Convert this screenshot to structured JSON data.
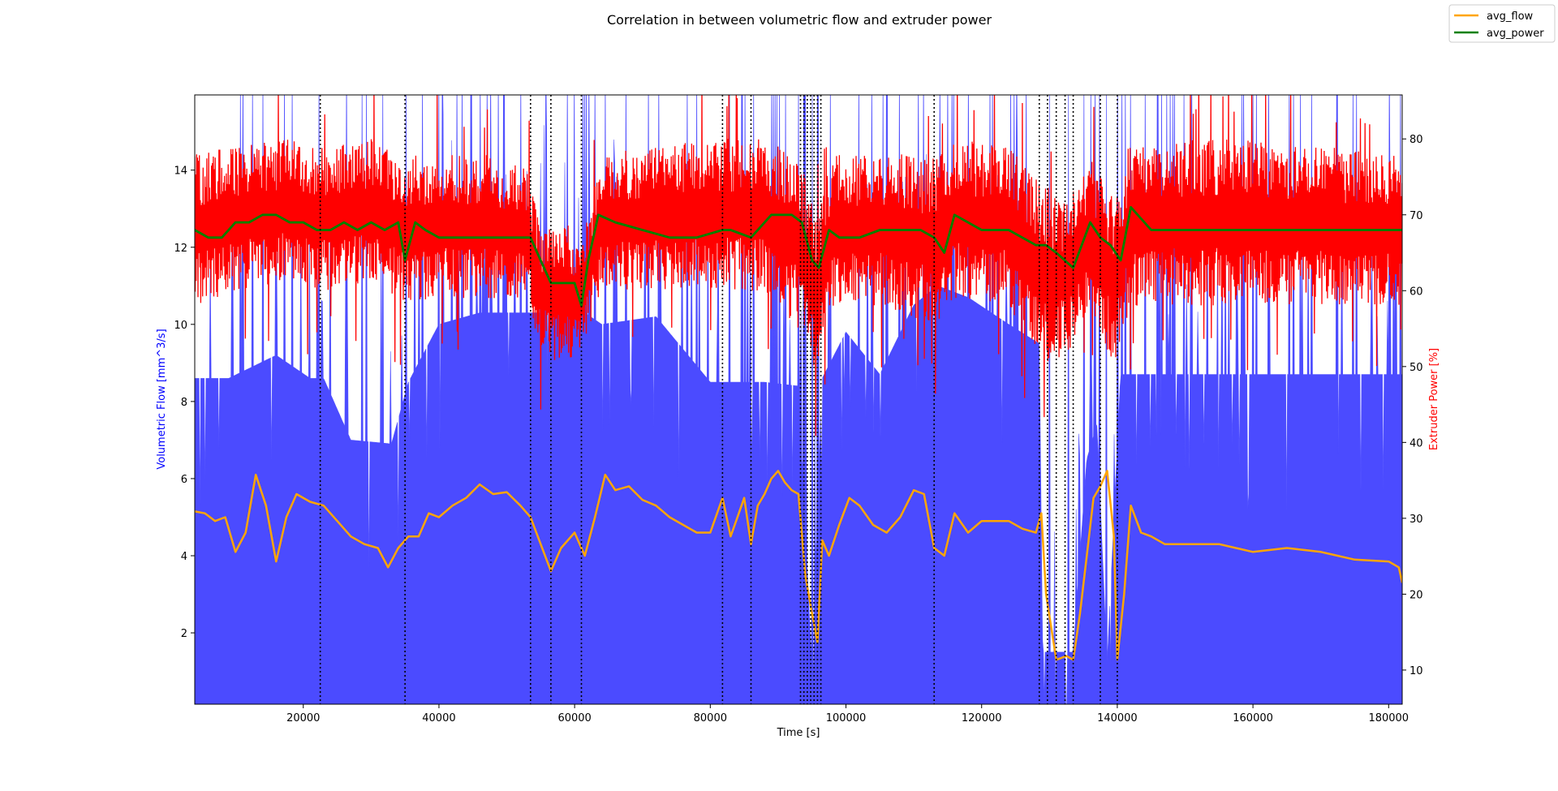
{
  "chart_data": {
    "type": "line",
    "title": "Correlation in between volumetric flow and extruder power",
    "xlabel": "Time [s]",
    "ylabel_left": "Volumetric Flow [mm^3/s]",
    "ylabel_right": "Extruder Power [%]",
    "ylabel_left_color": "#0000ff",
    "ylabel_right_color": "#ff0000",
    "xlim": [
      4000,
      182000
    ],
    "ylim_left": [
      0.15,
      15.95
    ],
    "ylim_right": [
      5.5,
      85.8
    ],
    "x_ticks": [
      20000,
      40000,
      60000,
      80000,
      100000,
      120000,
      140000,
      160000,
      180000
    ],
    "x_tick_labels": [
      "20000",
      "40000",
      "60000",
      "80000",
      "100000",
      "120000",
      "140000",
      "160000",
      "180000"
    ],
    "y_left_ticks": [
      2,
      4,
      6,
      8,
      10,
      12,
      14
    ],
    "y_left_tick_labels": [
      "2",
      "4",
      "6",
      "8",
      "10",
      "12",
      "14"
    ],
    "y_right_ticks": [
      10,
      20,
      30,
      40,
      50,
      60,
      70,
      80
    ],
    "y_right_tick_labels": [
      "10",
      "20",
      "30",
      "40",
      "50",
      "60",
      "70",
      "80"
    ],
    "grid": false,
    "legend_placement": "top-right (figure)",
    "vertical_markers_x": [
      22500,
      35000,
      53500,
      56500,
      61000,
      81800,
      86000,
      93300,
      93800,
      94300,
      94800,
      95300,
      95800,
      96300,
      113000,
      128500,
      129700,
      131000,
      132300,
      133500,
      137500,
      140000
    ],
    "series": [
      {
        "name": "",
        "axis": "left",
        "style": "raw-fill",
        "color": "#4b4bff",
        "x": [
          4000,
          9000,
          16000,
          21000,
          23000,
          27000,
          33000,
          35500,
          40000,
          46000,
          52000,
          54000,
          57000,
          61500,
          64000,
          72000,
          80000,
          84000,
          88000,
          93000,
          95000,
          96500,
          100000,
          105000,
          110000,
          113500,
          118000,
          124000,
          128500,
          129000,
          133500,
          135500,
          137000,
          138500,
          140500,
          145000,
          155000,
          165000,
          175000,
          182000
        ],
        "y_base": [
          8.6,
          8.6,
          9.2,
          8.6,
          8.6,
          7.0,
          6.9,
          8.5,
          10.0,
          10.3,
          10.3,
          10.3,
          10.3,
          10.3,
          10.0,
          10.2,
          8.5,
          8.5,
          8.5,
          8.4,
          1.0,
          8.6,
          9.8,
          8.7,
          10.5,
          11.0,
          10.7,
          10.0,
          9.5,
          1.5,
          1.5,
          6.5,
          7.4,
          1.2,
          8.7,
          8.7,
          8.7,
          8.7,
          8.7,
          8.7
        ]
      },
      {
        "name": "",
        "axis": "right",
        "style": "raw-band",
        "color": "#ff0000",
        "x": [
          4000,
          10000,
          17000,
          24000,
          30000,
          35000,
          40000,
          47000,
          53000,
          55000,
          58000,
          61000,
          64000,
          72000,
          80000,
          88000,
          93000,
          95500,
          98000,
          105000,
          113000,
          116000,
          124000,
          129000,
          133000,
          136000,
          139500,
          142000,
          150000,
          160000,
          170000,
          182000
        ],
        "lo": [
          58,
          60,
          61,
          60,
          61,
          58,
          59,
          59,
          59,
          52,
          50,
          52,
          60,
          60,
          60,
          60,
          55,
          48,
          58,
          58,
          55,
          59,
          58,
          50,
          52,
          58,
          50,
          58,
          58,
          58,
          58,
          58
        ],
        "hi": [
          78,
          79,
          80,
          79,
          80,
          78,
          78,
          78,
          76,
          68,
          70,
          66,
          78,
          79,
          80,
          80,
          78,
          70,
          78,
          78,
          78,
          80,
          79,
          74,
          72,
          78,
          72,
          80,
          80,
          80,
          79,
          78
        ]
      },
      {
        "name": "avg_flow",
        "axis": "left",
        "color": "#ffa500",
        "x": [
          4000,
          5500,
          7000,
          8500,
          10000,
          11500,
          13000,
          14500,
          16000,
          17500,
          19000,
          21000,
          23000,
          25000,
          27000,
          29000,
          31000,
          32500,
          34000,
          35500,
          37000,
          38500,
          40000,
          42000,
          44000,
          46000,
          48000,
          50000,
          52000,
          53500,
          55000,
          56500,
          58000,
          60000,
          61500,
          63000,
          64500,
          66000,
          68000,
          70000,
          72000,
          74000,
          76000,
          78000,
          80000,
          81800,
          83000,
          84000,
          85000,
          86000,
          87000,
          88000,
          89000,
          90000,
          91000,
          92000,
          93000,
          94000,
          95000,
          95800,
          96500,
          97500,
          99000,
          100500,
          102000,
          104000,
          106000,
          108000,
          110000,
          111500,
          113000,
          114500,
          116000,
          118000,
          120000,
          122000,
          124000,
          126000,
          128000,
          128800,
          129500,
          131000,
          132500,
          133500,
          134500,
          135500,
          136500,
          137500,
          138500,
          139500,
          140000,
          141000,
          142000,
          143500,
          145000,
          147000,
          150000,
          155000,
          160000,
          165000,
          170000,
          175000,
          180000,
          181500,
          182000
        ],
        "y": [
          5.15,
          5.1,
          4.9,
          5.0,
          4.1,
          4.6,
          6.1,
          5.3,
          3.85,
          5.0,
          5.6,
          5.4,
          5.3,
          4.9,
          4.5,
          4.3,
          4.2,
          3.7,
          4.2,
          4.5,
          4.5,
          5.1,
          5.0,
          5.3,
          5.5,
          5.85,
          5.6,
          5.65,
          5.3,
          5.0,
          4.3,
          3.6,
          4.2,
          4.6,
          4.0,
          5.0,
          6.1,
          5.7,
          5.8,
          5.45,
          5.3,
          5.0,
          4.8,
          4.6,
          4.6,
          5.5,
          4.5,
          5.0,
          5.5,
          4.3,
          5.3,
          5.6,
          6.0,
          6.2,
          5.9,
          5.7,
          5.6,
          3.5,
          2.5,
          1.75,
          4.4,
          4.0,
          4.8,
          5.5,
          5.3,
          4.8,
          4.6,
          5.0,
          5.7,
          5.6,
          4.2,
          4.0,
          5.1,
          4.6,
          4.9,
          4.9,
          4.9,
          4.7,
          4.6,
          5.1,
          3.0,
          1.3,
          1.4,
          1.3,
          2.5,
          4.0,
          5.5,
          5.8,
          6.2,
          4.5,
          1.3,
          3.0,
          5.3,
          4.6,
          4.5,
          4.3,
          4.3,
          4.3,
          4.1,
          4.2,
          4.1,
          3.9,
          3.85,
          3.7,
          3.3
        ]
      },
      {
        "name": "avg_power",
        "axis": "right",
        "color": "#008000",
        "x": [
          4000,
          6000,
          8000,
          10000,
          12000,
          14000,
          16000,
          18000,
          20000,
          22000,
          24000,
          26000,
          28000,
          30000,
          32000,
          34000,
          35000,
          36500,
          38000,
          40000,
          43000,
          46000,
          49000,
          52000,
          53500,
          55000,
          56500,
          58000,
          60000,
          61000,
          62000,
          63500,
          66000,
          70000,
          74000,
          78000,
          81800,
          83000,
          86000,
          89000,
          92000,
          93500,
          95000,
          96000,
          97500,
          99000,
          102000,
          105000,
          108000,
          111000,
          113000,
          114500,
          116000,
          120000,
          124000,
          128000,
          129500,
          131000,
          133500,
          136000,
          137500,
          139000,
          140500,
          142000,
          145000,
          150000,
          160000,
          170000,
          182000
        ],
        "y": [
          68,
          67,
          67,
          69,
          69,
          70,
          70,
          69,
          69,
          68,
          68,
          69,
          68,
          69,
          68,
          69,
          64,
          69,
          68,
          67,
          67,
          67,
          67,
          67,
          67,
          64,
          61,
          61,
          61,
          58,
          64,
          70,
          69,
          68,
          67,
          67,
          68,
          68,
          67,
          70,
          70,
          69,
          64,
          63,
          68,
          67,
          67,
          68,
          68,
          68,
          67,
          65,
          70,
          68,
          68,
          66,
          66,
          65,
          63,
          69,
          67,
          66,
          64,
          71,
          68,
          68,
          68,
          68,
          68
        ]
      }
    ]
  }
}
